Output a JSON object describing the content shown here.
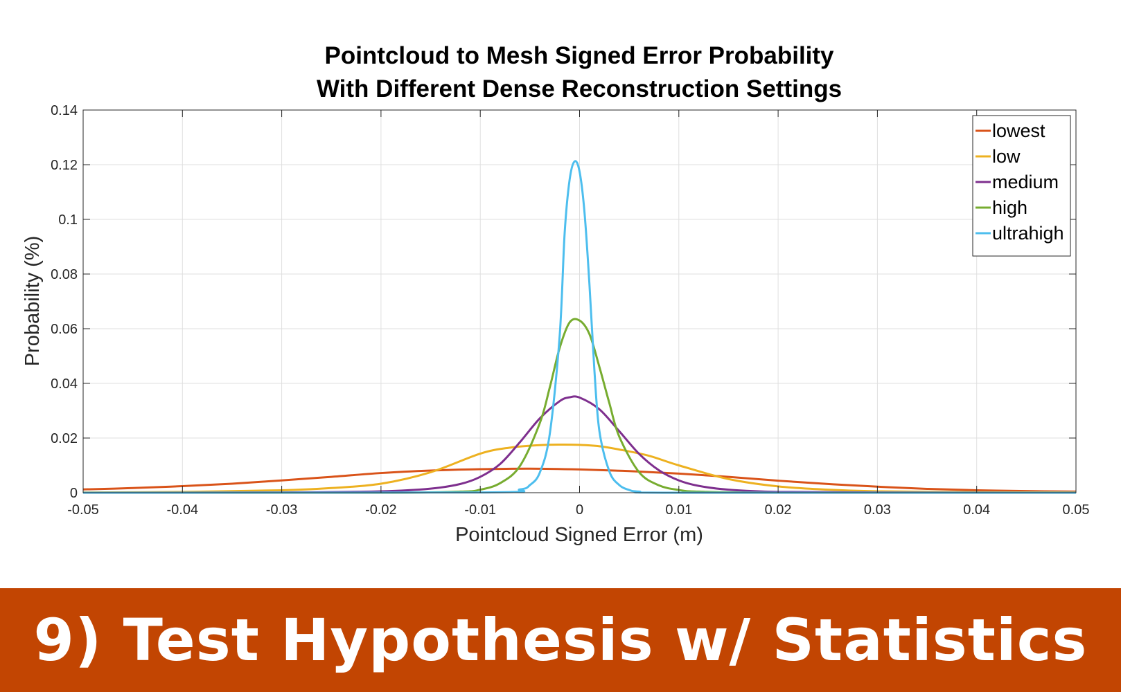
{
  "banner": {
    "text": "9) Test Hypothesis w/ Statistics",
    "background": "#c24502"
  },
  "chart_data": {
    "type": "line",
    "title": [
      "Pointcloud to Mesh Signed Error Probability",
      "With Different Dense Reconstruction Settings"
    ],
    "xlabel": "Pointcloud Signed Error (m)",
    "ylabel": "Probability (%)",
    "xlim": [
      -0.05,
      0.05
    ],
    "ylim": [
      0,
      0.14
    ],
    "xticks": [
      -0.05,
      -0.04,
      -0.03,
      -0.02,
      -0.01,
      0,
      0.01,
      0.02,
      0.03,
      0.04,
      0.05
    ],
    "xtick_labels": [
      "-0.05",
      "-0.04",
      "-0.03",
      "-0.02",
      "-0.01",
      "0",
      "0.01",
      "0.02",
      "0.03",
      "0.04",
      "0.05"
    ],
    "yticks": [
      0,
      0.02,
      0.04,
      0.06,
      0.08,
      0.1,
      0.12,
      0.14
    ],
    "ytick_labels": [
      "0",
      "0.02",
      "0.04",
      "0.06",
      "0.08",
      "0.1",
      "0.12",
      "0.14"
    ],
    "grid": true,
    "legend_position": "top-right",
    "series": [
      {
        "name": "lowest",
        "color": "#d95319",
        "x": [
          -0.05,
          -0.045,
          -0.04,
          -0.035,
          -0.03,
          -0.025,
          -0.02,
          -0.015,
          -0.01,
          -0.005,
          0,
          0.005,
          0.01,
          0.015,
          0.02,
          0.025,
          0.03,
          0.035,
          0.04,
          0.045,
          0.05
        ],
        "y": [
          0.0012,
          0.0017,
          0.0024,
          0.0033,
          0.0045,
          0.0058,
          0.0072,
          0.0081,
          0.0086,
          0.0088,
          0.0085,
          0.0079,
          0.007,
          0.0058,
          0.0044,
          0.0032,
          0.0022,
          0.0014,
          0.0009,
          0.0006,
          0.0004
        ]
      },
      {
        "name": "low",
        "color": "#edb120",
        "x": [
          -0.05,
          -0.04,
          -0.03,
          -0.025,
          -0.02,
          -0.015,
          -0.01,
          -0.007,
          -0.004,
          -0.002,
          0,
          0.002,
          0.004,
          0.007,
          0.01,
          0.015,
          0.02,
          0.025,
          0.03,
          0.04,
          0.05
        ],
        "y": [
          0.0001,
          0.0003,
          0.0009,
          0.0017,
          0.0033,
          0.0075,
          0.0143,
          0.0165,
          0.0174,
          0.0176,
          0.0175,
          0.017,
          0.0158,
          0.0135,
          0.01,
          0.005,
          0.0023,
          0.0011,
          0.0005,
          0.0002,
          0.0001
        ]
      },
      {
        "name": "medium",
        "color": "#7e2f8e",
        "x": [
          -0.05,
          -0.03,
          -0.02,
          -0.015,
          -0.012,
          -0.01,
          -0.008,
          -0.006,
          -0.004,
          -0.002,
          -0.001,
          0,
          0.002,
          0.004,
          0.006,
          0.008,
          0.01,
          0.012,
          0.015,
          0.02,
          0.03,
          0.05
        ],
        "y": [
          0,
          0.0001,
          0.0005,
          0.0015,
          0.0032,
          0.0058,
          0.0105,
          0.0185,
          0.0272,
          0.0335,
          0.0349,
          0.0348,
          0.0305,
          0.0225,
          0.0142,
          0.0082,
          0.0045,
          0.0025,
          0.0011,
          0.0003,
          0.0001,
          0
        ]
      },
      {
        "name": "high",
        "color": "#77ac30",
        "x": [
          -0.05,
          -0.02,
          -0.012,
          -0.01,
          -0.008,
          -0.006,
          -0.004,
          -0.003,
          -0.002,
          -0.001,
          0,
          0.001,
          0.002,
          0.003,
          0.004,
          0.006,
          0.008,
          0.01,
          0.012,
          0.02,
          0.05
        ],
        "y": [
          0,
          0,
          0.0004,
          0.0011,
          0.0035,
          0.0098,
          0.0255,
          0.0385,
          0.053,
          0.0623,
          0.063,
          0.058,
          0.046,
          0.0328,
          0.0205,
          0.0075,
          0.0027,
          0.001,
          0.0004,
          0,
          0
        ]
      },
      {
        "name": "ultrahigh",
        "color": "#4dbeee",
        "x": [
          -0.05,
          -0.01,
          -0.006,
          -0.005,
          -0.004,
          -0.003,
          -0.002,
          -0.0015,
          -0.001,
          -0.0005,
          0,
          0.0005,
          0.001,
          0.0015,
          0.002,
          0.003,
          0.004,
          0.005,
          0.006,
          0.01,
          0.05
        ],
        "y": [
          0,
          0.0001,
          0.0012,
          0.0028,
          0.0074,
          0.0215,
          0.0575,
          0.095,
          0.1145,
          0.1212,
          0.1175,
          0.1025,
          0.076,
          0.0445,
          0.0225,
          0.0078,
          0.0028,
          0.001,
          0.0004,
          0,
          0
        ]
      }
    ]
  }
}
